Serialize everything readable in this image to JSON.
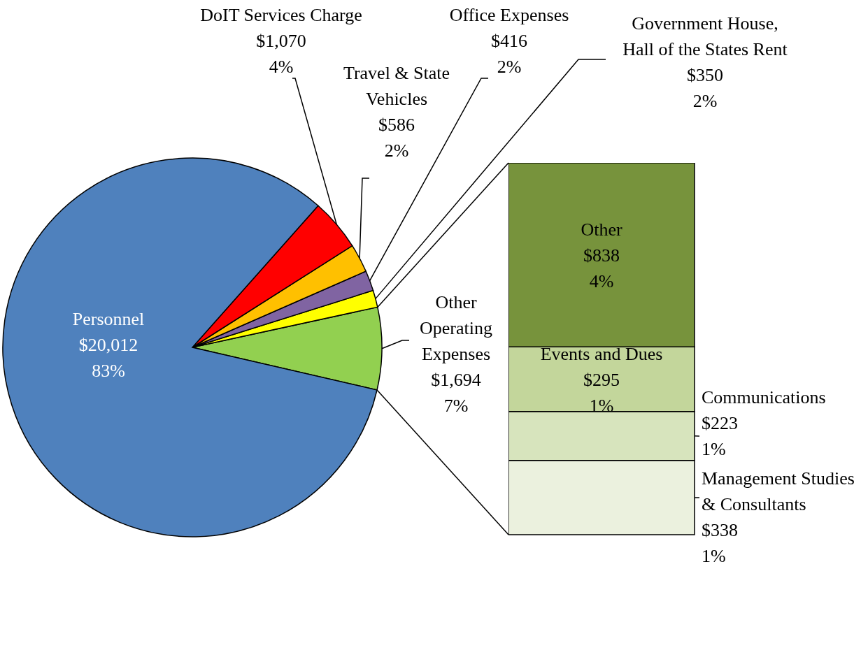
{
  "chart_data": [
    {
      "type": "pie",
      "categories": [
        "Other Operating Expenses",
        "Government House, Hall of the States Rent",
        "Office Expenses",
        "Travel & State Vehicles",
        "DoIT Services Charge",
        "Personnel"
      ],
      "values": [
        1694,
        350,
        416,
        586,
        1070,
        20012
      ],
      "colors": [
        "#92d050",
        "#ffff00",
        "#8064a2",
        "#ffc000",
        "#ff0000",
        "#4f81bd"
      ],
      "value_labels": [
        "$1,694\n7%",
        "$350\n2%",
        "$416\n2%",
        "$586\n2%",
        "$1,070\n4%",
        "$20,012\n83%"
      ]
    },
    {
      "type": "bar",
      "stacked": true,
      "categories": [
        null
      ],
      "series": [
        {
          "name": "Management Studies & Consultants",
          "color": "#ebf1de",
          "values": [
            338
          ],
          "value_labels": [
            "$338\n1%"
          ]
        },
        {
          "name": "Communications",
          "color": "#d7e4bd",
          "values": [
            223
          ],
          "value_labels": [
            "$223\n1%"
          ]
        },
        {
          "name": "Events and Dues",
          "color": "#c3d69b",
          "values": [
            295
          ],
          "value_labels": [
            "$295\n1%"
          ]
        },
        {
          "name": "Other",
          "color": "#77933c",
          "values": [
            838
          ],
          "value_labels": [
            "$838\n4%"
          ]
        }
      ]
    }
  ]
}
